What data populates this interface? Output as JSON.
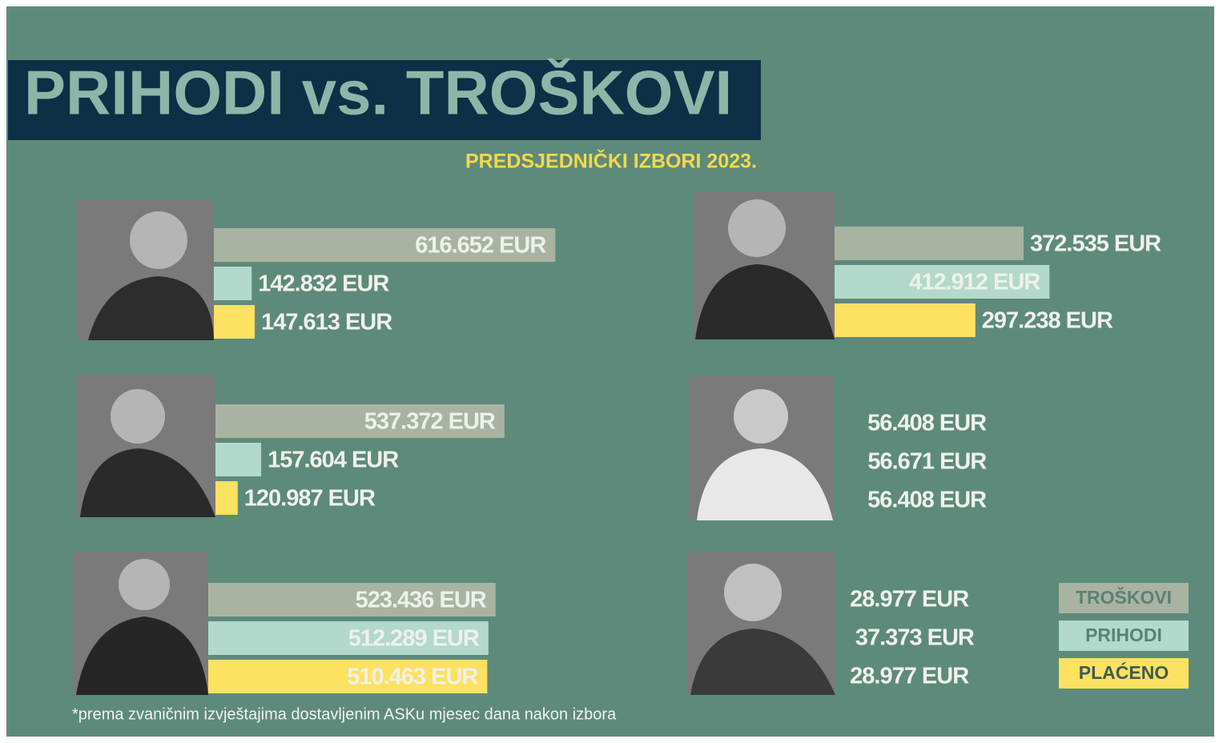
{
  "chart_data": {
    "type": "bar",
    "title": "PRIHODI vs. TROŠKOVI",
    "subtitle": "PREDSJEDNIČKI IZBORI 2023.",
    "footnote": "*prema zvaničnim izvještajima dostavljenim ASKu mjesec dana nakon izbora",
    "categories": [
      null,
      null,
      null,
      null,
      null,
      null
    ],
    "series": [
      {
        "name": "TROŠKOVI",
        "color": "#a9b3a2",
        "values": [
          616652,
          537372,
          523436,
          372535,
          56408,
          28977
        ],
        "value_labels": [
          "616.652 EUR",
          "537.372 EUR",
          "523.436 EUR",
          "372.535 EUR",
          "56.408 EUR",
          "28.977 EUR"
        ]
      },
      {
        "name": "PRIHODI",
        "color": "#b3d8cc",
        "values": [
          142832,
          157604,
          512289,
          412912,
          56671,
          37373
        ],
        "value_labels": [
          "142.832 EUR",
          "157.604 EUR",
          "512.289 EUR",
          "412.912 EUR",
          "56.671 EUR",
          "37.373 EUR"
        ]
      },
      {
        "name": "PLAĆENO",
        "color": "#fde160",
        "values": [
          147613,
          120987,
          510463,
          297238,
          56408,
          28977
        ],
        "value_labels": [
          "147.613 EUR",
          "120.987 EUR",
          "510.463 EUR",
          "297.238 EUR",
          "56.408 EUR",
          "28.977 EUR"
        ]
      }
    ],
    "legend": "bottom-right"
  }
}
